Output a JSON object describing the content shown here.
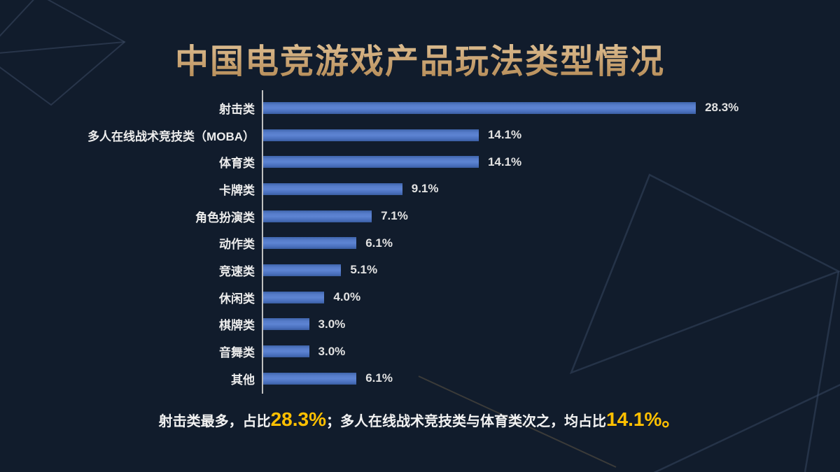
{
  "title": "中国电竞游戏产品玩法类型情况",
  "chart_data": {
    "type": "bar",
    "orientation": "horizontal",
    "title": "中国电竞游戏产品玩法类型情况",
    "xlabel": "",
    "ylabel": "",
    "xlim": [
      0,
      30
    ],
    "grid": false,
    "legend": "none",
    "categories": [
      "射击类",
      "多人在线战术竞技类（MOBA）",
      "体育类",
      "卡牌类",
      "角色扮演类",
      "动作类",
      "竞速类",
      "休闲类",
      "棋牌类",
      "音舞类",
      "其他"
    ],
    "values": [
      28.3,
      14.1,
      14.1,
      9.1,
      7.1,
      6.1,
      5.1,
      4.0,
      3.0,
      3.0,
      6.1
    ],
    "value_labels": [
      "28.3%",
      "14.1%",
      "14.1%",
      "9.1%",
      "7.1%",
      "6.1%",
      "5.1%",
      "4.0%",
      "3.0%",
      "3.0%",
      "6.1%"
    ],
    "bar_color": "#4a73c4",
    "axis_line_color": "#bfbfbf",
    "label_color": "#ededed"
  },
  "summary": {
    "segments": [
      {
        "text": "射击类最多，占比",
        "highlight": false
      },
      {
        "text": "28.3%",
        "highlight": true
      },
      {
        "text": "；多人在线战术竞技类与体育类次之，均占比",
        "highlight": false
      },
      {
        "text": "14.1%。",
        "highlight": true
      }
    ],
    "highlight_color": "#ffc000"
  },
  "colors": {
    "background": "#111c2c",
    "title_gold_light": "#e5cba0",
    "title_gold_dark": "#b28852",
    "bar_blue": "#4a73c4",
    "highlight_yellow": "#ffc000"
  }
}
